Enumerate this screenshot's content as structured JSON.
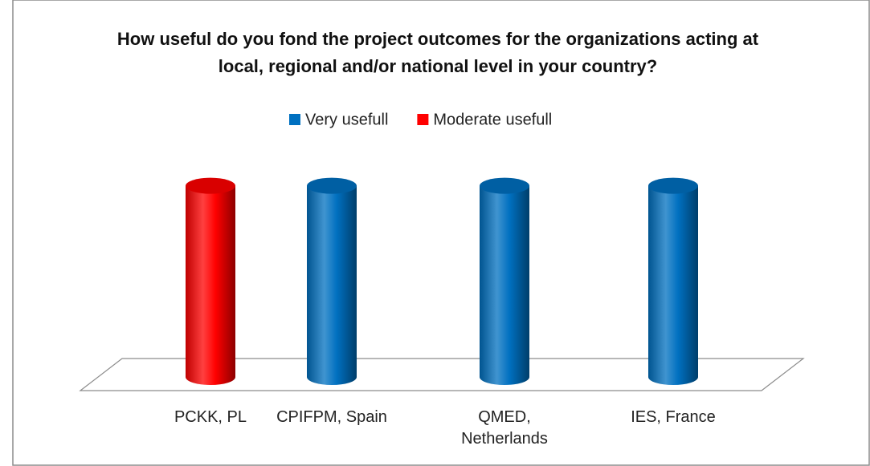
{
  "chart_data": {
    "type": "bar3d",
    "title": "How useful do you fond the project outcomes for the organizations acting at local, regional and/or national level in your country?",
    "categories": [
      "PCKK, PL",
      "CPIFPM, Spain",
      "QMED, Netherlands",
      "IES, France"
    ],
    "series": [
      {
        "name": "Very usefull",
        "color": "#0070c0",
        "values": [
          null,
          1,
          1,
          1
        ]
      },
      {
        "name": "Moderate usefull",
        "color": "#ff0000",
        "values": [
          1,
          null,
          null,
          null
        ]
      }
    ],
    "ylim": [
      0,
      1.2
    ],
    "legend": "top"
  }
}
